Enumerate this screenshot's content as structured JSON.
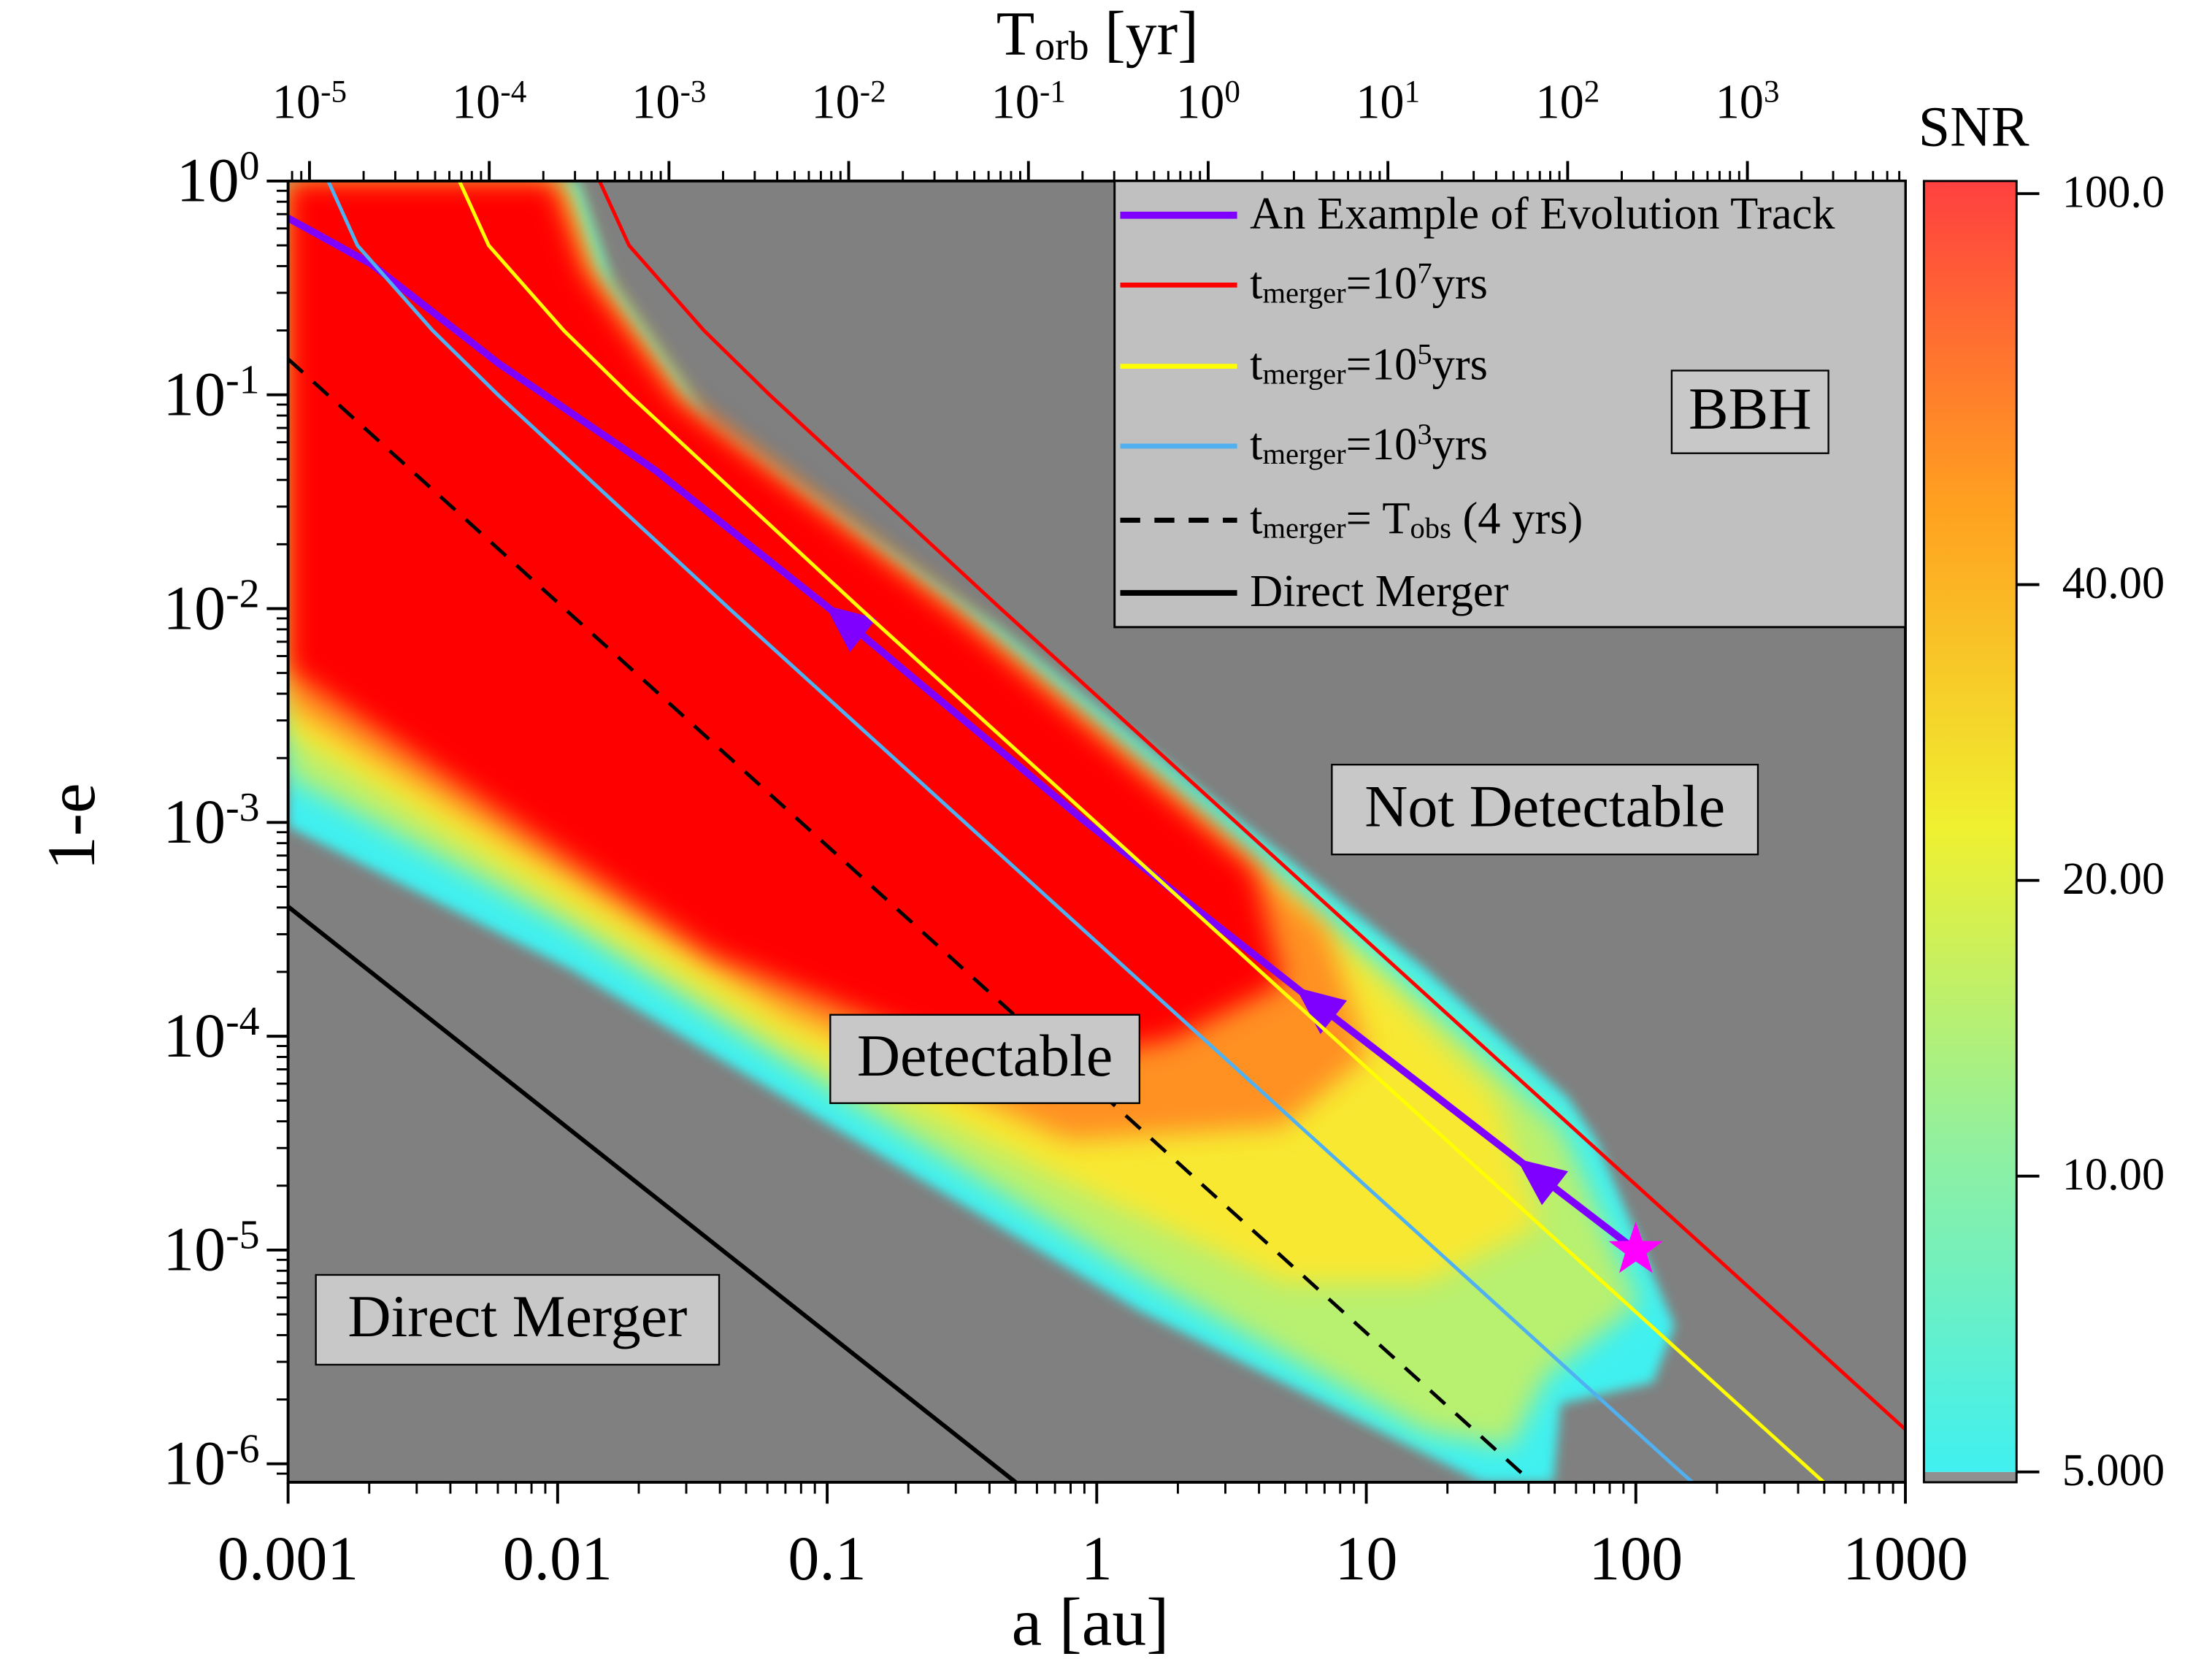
{
  "chart_data": {
    "type": "line",
    "xlabel": "a [au]",
    "x2label": "T_{orb} [yr]",
    "ylabel": "1-e",
    "xscale": "log",
    "yscale": "log",
    "background": "#808080",
    "xlim": [
      0.001,
      1000
    ],
    "xticks": [
      0.001,
      0.01,
      0.1,
      1,
      10,
      100,
      1000
    ],
    "ylim": [
      8.2e-07,
      1
    ],
    "yticks": [
      {
        "value": 1e-06,
        "label": "10^{-6}"
      },
      {
        "value": 1e-05,
        "label": "10^{-5}"
      },
      {
        "value": 0.0001,
        "label": "10^{-4}"
      },
      {
        "value": 0.001,
        "label": "10^{-3}"
      },
      {
        "value": 0.01,
        "label": "10^{-2}"
      },
      {
        "value": 0.1,
        "label": "10^{-1}"
      },
      {
        "value": 1,
        "label": "10^{0}"
      }
    ],
    "x2lim": [
      7.6e-06,
      7570
    ],
    "x2ticks": [
      {
        "value": 1e-05,
        "label": "10^{-5}"
      },
      {
        "value": 0.0001,
        "label": "10^{-4}"
      },
      {
        "value": 0.001,
        "label": "10^{-3}"
      },
      {
        "value": 0.01,
        "label": "10^{-2}"
      },
      {
        "value": 0.1,
        "label": "10^{-1}"
      },
      {
        "value": 1,
        "label": "10^{0}"
      },
      {
        "value": 10,
        "label": "10^{1}"
      },
      {
        "value": 100,
        "label": "10^{2}"
      },
      {
        "value": 1000,
        "label": "10^{3}"
      }
    ],
    "legend": "upper right",
    "series": [
      {
        "name": "An Example of Evolution Track",
        "color": "#8000ff",
        "width": 5,
        "marker_color": "#ff00ff",
        "x": [
          0.001,
          0.00203,
          0.00605,
          0.0231,
          0.119,
          0.889,
          6.62,
          43.8,
          100
        ],
        "values": [
          0.671,
          0.41,
          0.14,
          0.0443,
          0.00858,
          0.00103,
          0.00014,
          2.22e-05,
          1e-05
        ]
      },
      {
        "name": "t_{merger}=10^{7}yrs",
        "color": "#ff0000",
        "width": 2.5,
        "x": [
          0.0143,
          0.0184,
          0.0349,
          0.0611,
          0.44,
          3.29,
          24.6,
          185,
          1000
        ],
        "values": [
          1,
          0.5,
          0.2,
          0.1,
          0.01,
          0.001,
          0.0001,
          1e-05,
          1.45e-06
        ]
      },
      {
        "name": "t_{merger}=10^{5}yrs",
        "color": "#ffff00",
        "width": 2.5,
        "x": [
          0.00432,
          0.00555,
          0.01054,
          0.01845,
          0.1327,
          0.993,
          7.45,
          55.8,
          419,
          498
        ],
        "values": [
          1,
          0.5,
          0.2,
          0.1,
          0.01,
          0.001,
          0.0001,
          1e-05,
          1e-06,
          8.2e-07
        ]
      },
      {
        "name": "t_{merger}=10^{3}yrs",
        "color": "#50b0f0",
        "width": 2.5,
        "x": [
          0.00141,
          0.00181,
          0.00344,
          0.00601,
          0.0433,
          0.324,
          2.43,
          18.2,
          136,
          162
        ],
        "values": [
          1,
          0.5,
          0.2,
          0.1,
          0.01,
          0.001,
          0.0001,
          1e-05,
          1e-06,
          8.2e-07
        ]
      },
      {
        "name": "t_{merger}= T_{obs} (4 yrs)",
        "color": "#000000",
        "width": 2.5,
        "dash": true,
        "x": [
          0.001,
          41.1
        ],
        "values": [
          0.147,
          8.2e-07
        ]
      },
      {
        "name": "Direct Merger",
        "color": "#000000",
        "width": 3,
        "x": [
          0.001,
          0.5
        ],
        "values": [
          0.000404,
          8.2e-07
        ]
      }
    ],
    "annotations": [
      "BBH",
      "Not Detectable",
      "Detectable",
      "Direct Merger"
    ],
    "colorbar": {
      "label": "SNR",
      "scale": "log",
      "lim": [
        4.88,
        103
      ],
      "ticks": [
        {
          "value": 100,
          "label": "100.0"
        },
        {
          "value": 40,
          "label": "40.00"
        },
        {
          "value": 20,
          "label": "20.00"
        },
        {
          "value": 10,
          "label": "10.00"
        },
        {
          "value": 5,
          "label": "5.000"
        }
      ],
      "colors": [
        "#40f0f0",
        "#90f0a0",
        "#f0f030",
        "#ffa020",
        "#ff4040"
      ],
      "under_color": "#909090"
    }
  }
}
